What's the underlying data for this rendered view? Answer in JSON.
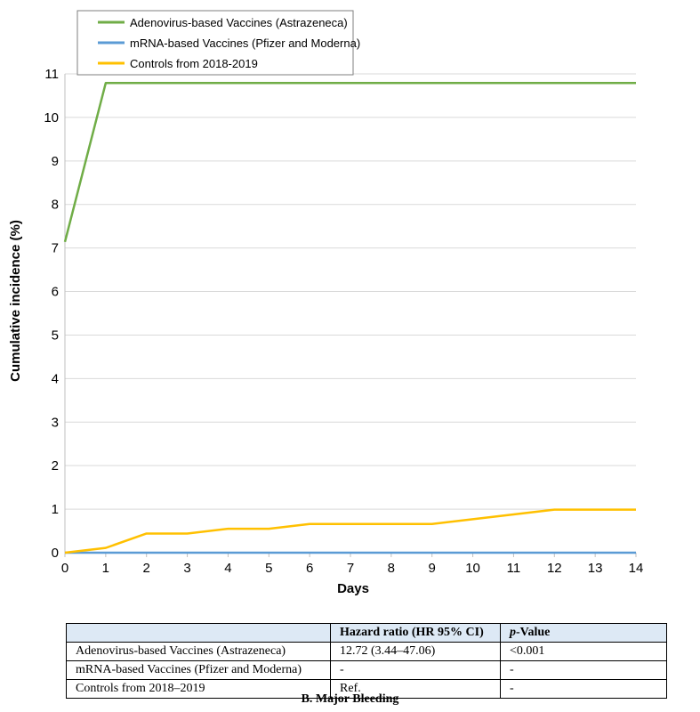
{
  "chart_data": {
    "type": "line",
    "title": "",
    "xlabel": "Days",
    "ylabel": "Cumulative incidence (%)",
    "xlim": [
      0,
      14
    ],
    "ylim": [
      0,
      11
    ],
    "xticks": [
      "0",
      "1",
      "2",
      "3",
      "4",
      "5",
      "6",
      "7",
      "8",
      "9",
      "10",
      "11",
      "12",
      "13",
      "14"
    ],
    "yticks": [
      "0",
      "1",
      "2",
      "3",
      "4",
      "5",
      "6",
      "7",
      "8",
      "9",
      "10",
      "11"
    ],
    "grid": true,
    "legend_position": "top-left",
    "series": [
      {
        "name": "Adenovirus-based Vaccines (Astrazeneca)",
        "color": "#70ad47",
        "x": [
          0,
          1,
          2,
          3,
          4,
          5,
          6,
          7,
          8,
          9,
          10,
          11,
          12,
          13,
          14
        ],
        "y": [
          7.14,
          10.79,
          10.79,
          10.79,
          10.79,
          10.79,
          10.79,
          10.79,
          10.79,
          10.79,
          10.79,
          10.79,
          10.79,
          10.79,
          10.79
        ]
      },
      {
        "name": "mRNA-based Vaccines  (Pfizer and Moderna)",
        "color": "#5b9bd5",
        "x": [
          0,
          1,
          2,
          3,
          4,
          5,
          6,
          7,
          8,
          9,
          10,
          11,
          12,
          13,
          14
        ],
        "y": [
          0,
          0,
          0,
          0,
          0,
          0,
          0,
          0,
          0,
          0,
          0,
          0,
          0,
          0,
          0
        ]
      },
      {
        "name": "Controls from 2018-2019",
        "color": "#ffc000",
        "x": [
          0,
          1,
          2,
          3,
          4,
          5,
          6,
          7,
          8,
          9,
          10,
          11,
          12,
          13,
          14
        ],
        "y": [
          0,
          0.11,
          0.44,
          0.44,
          0.55,
          0.55,
          0.66,
          0.66,
          0.66,
          0.66,
          0.77,
          0.88,
          0.99,
          0.99,
          0.99
        ]
      }
    ]
  },
  "table": {
    "headers": [
      "",
      "Hazard ratio (HR 95% CI)",
      "p-Value"
    ],
    "rows": [
      [
        "Adenovirus-based Vaccines (Astrazeneca)",
        "12.72 (3.44–47.06)",
        "<0.001"
      ],
      [
        "mRNA-based Vaccines (Pfizer and Moderna)",
        "-",
        "-"
      ],
      [
        "Controls from 2018–2019",
        "Ref.",
        "-"
      ]
    ]
  },
  "caption": "B. Major Bleeding"
}
